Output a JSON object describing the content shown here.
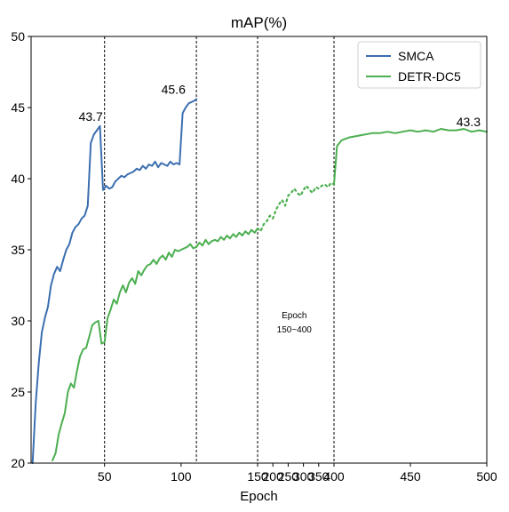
{
  "chart_data": {
    "type": "line",
    "title": "mAP(%)",
    "xlabel": "Epoch",
    "ylabel": "",
    "ylim": [
      20,
      50
    ],
    "grid": false,
    "legend_placement": "top-right",
    "x_ticks": [
      {
        "value": 50,
        "label": "50"
      },
      {
        "value": 100,
        "label": "100"
      },
      {
        "value": 150,
        "label": "150"
      },
      {
        "value": 200,
        "label": "200"
      },
      {
        "value": 250,
        "label": "250"
      },
      {
        "value": 300,
        "label": "300"
      },
      {
        "value": 350,
        "label": "350"
      },
      {
        "value": 400,
        "label": "400"
      },
      {
        "value": 450,
        "label": "450"
      },
      {
        "value": 500,
        "label": "500"
      }
    ],
    "y_ticks": [
      20,
      25,
      30,
      35,
      40,
      45,
      50
    ],
    "x_breaks_note": "axis is piecewise: 0-150 linear, 150-400 compressed segment, 400-500 linear",
    "vlines": [
      50,
      110,
      150,
      400
    ],
    "series": [
      {
        "name": "SMCA",
        "color": "#3b6fb0",
        "style": "solid",
        "x": [
          3,
          5,
          7,
          9,
          11,
          13,
          15,
          17,
          19,
          21,
          23,
          25,
          27,
          29,
          31,
          33,
          35,
          37,
          39,
          41,
          43,
          45,
          47,
          49,
          51,
          53,
          55,
          57,
          59,
          61,
          63,
          65,
          67,
          69,
          71,
          73,
          75,
          77,
          79,
          81,
          83,
          85,
          87,
          89,
          91,
          93,
          95,
          97,
          99,
          101,
          103,
          105,
          107,
          109,
          110
        ],
        "values": [
          20.0,
          24.2,
          27.0,
          29.2,
          30.2,
          31.0,
          32.5,
          33.3,
          33.8,
          33.5,
          34.3,
          35.0,
          35.4,
          36.2,
          36.6,
          36.8,
          37.2,
          37.4,
          38.1,
          42.5,
          43.1,
          43.4,
          43.7,
          39.2,
          39.5,
          39.3,
          39.4,
          39.8,
          40.0,
          40.2,
          40.1,
          40.3,
          40.4,
          40.5,
          40.7,
          40.6,
          40.9,
          40.7,
          41.0,
          40.9,
          41.2,
          40.8,
          41.1,
          41.0,
          40.9,
          41.2,
          41.0,
          41.1,
          41.0,
          44.6,
          45.0,
          45.3,
          45.4,
          45.5,
          45.6
        ]
      },
      {
        "name": "DETR-DC5",
        "color": "#4caf50",
        "style": "solid",
        "x": [
          16,
          18,
          20,
          22,
          24,
          26,
          28,
          30,
          32,
          34,
          36,
          38,
          40,
          42,
          44,
          46,
          48,
          50,
          52,
          54,
          56,
          58,
          60,
          62,
          64,
          66,
          68,
          70,
          72,
          74,
          76,
          78,
          80,
          82,
          84,
          86,
          88,
          90,
          92,
          94,
          96,
          98,
          100,
          102,
          104,
          106,
          108,
          110,
          112,
          114,
          116,
          118,
          120,
          122,
          124,
          126,
          128,
          130,
          132,
          134,
          136,
          138,
          140,
          142,
          144,
          146,
          148,
          150
        ],
        "values": [
          20.2,
          20.7,
          22.0,
          22.8,
          23.5,
          25.0,
          25.6,
          25.3,
          26.5,
          27.5,
          28.0,
          28.1,
          28.9,
          29.7,
          29.9,
          30.0,
          28.4,
          28.5,
          30.2,
          30.8,
          31.5,
          31.2,
          32.0,
          32.5,
          32.0,
          32.7,
          33.0,
          32.6,
          33.5,
          33.2,
          33.6,
          33.9,
          34.0,
          34.3,
          34.0,
          34.4,
          34.6,
          34.3,
          34.8,
          34.5,
          35.0,
          34.9,
          35.0,
          35.1,
          35.2,
          35.4,
          35.1,
          35.2,
          35.5,
          35.3,
          35.7,
          35.4,
          35.6,
          35.7,
          35.6,
          35.9,
          35.7,
          36.0,
          35.8,
          36.1,
          35.9,
          36.2,
          36.0,
          36.3,
          36.1,
          36.4,
          36.2,
          36.5
        ]
      },
      {
        "name": "DETR-DC5 (compressed)",
        "color": "#4caf50",
        "style": "dotted",
        "x": [
          150,
          160,
          170,
          180,
          190,
          200,
          210,
          220,
          230,
          240,
          250,
          260,
          270,
          280,
          290,
          300,
          310,
          320,
          330,
          340,
          350,
          360,
          370,
          380,
          390,
          400
        ],
        "values": [
          36.5,
          36.3,
          36.8,
          37.0,
          37.4,
          37.2,
          37.8,
          38.2,
          38.5,
          38.1,
          38.8,
          39.0,
          39.3,
          39.0,
          38.8,
          39.2,
          39.5,
          39.2,
          39.0,
          39.4,
          39.3,
          39.5,
          39.6,
          39.4,
          39.7,
          39.6
        ]
      },
      {
        "name": "DETR-DC5 (tail)",
        "color": "#4caf50",
        "style": "solid",
        "x": [
          400,
          402,
          405,
          410,
          415,
          420,
          425,
          430,
          435,
          440,
          445,
          450,
          455,
          460,
          465,
          470,
          475,
          480,
          485,
          490,
          495,
          500
        ],
        "values": [
          39.6,
          42.3,
          42.7,
          42.9,
          43.0,
          43.1,
          43.2,
          43.2,
          43.3,
          43.2,
          43.3,
          43.4,
          43.3,
          43.4,
          43.3,
          43.5,
          43.4,
          43.4,
          43.5,
          43.3,
          43.4,
          43.3
        ]
      }
    ],
    "annotations": [
      {
        "text": "43.7",
        "x": 41,
        "y": 43.7
      },
      {
        "text": "45.6",
        "x": 95,
        "y": 45.6
      },
      {
        "text": "43.3",
        "x": 488,
        "y": 43.3
      },
      {
        "text": "Epoch",
        "x": 270,
        "y": 30.2,
        "small": true
      },
      {
        "text": "150~400",
        "x": 270,
        "y": 29.2,
        "small": true
      }
    ]
  },
  "legend": {
    "items": [
      {
        "label": "SMCA",
        "color": "#3b6fb0"
      },
      {
        "label": "DETR-DC5",
        "color": "#4caf50"
      }
    ]
  }
}
